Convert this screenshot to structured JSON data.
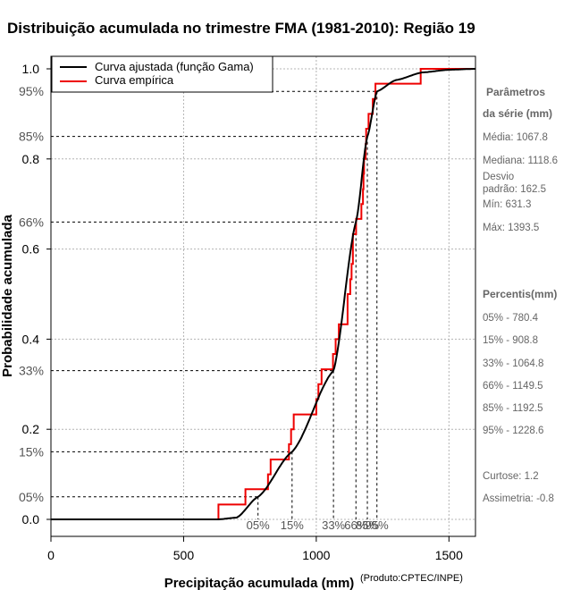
{
  "chart_data": {
    "type": "line",
    "title": "Distribuição acumulada no trimestre FMA (1981-2010): Região 19",
    "xlabel": "Precipitação acumulada (mm)",
    "ylabel": "Probabilidade acumulada",
    "credit": "(Produto:CPTEC/INPE)",
    "xlim": [
      0,
      1600
    ],
    "ylim": [
      0,
      1
    ],
    "x_ticks": [
      0,
      500,
      1000,
      1500
    ],
    "y_ticks": [
      0.0,
      0.2,
      0.4,
      0.6,
      0.8,
      1.0
    ],
    "y_tick_labels": [
      "0.0",
      "0.2",
      "0.4",
      "0.6",
      "0.8",
      "1.0"
    ],
    "grid": true,
    "legend": {
      "position": "top-left",
      "entries": [
        {
          "label": "Curva ajustada (função Gama)",
          "color": "#000000"
        },
        {
          "label": "Curva empírica",
          "color": "#ee0000"
        }
      ]
    },
    "fitted_curve": {
      "name": "Curva ajustada (função Gama)",
      "color": "#000000",
      "mean": 1067.8,
      "sd": 162.5
    },
    "empirical_curve": {
      "name": "Curva empírica",
      "color": "#ee0000",
      "steps": [
        {
          "x": 0,
          "y": 0.0
        },
        {
          "x": 631.3,
          "y": 0.033
        },
        {
          "x": 733,
          "y": 0.067
        },
        {
          "x": 818,
          "y": 0.1
        },
        {
          "x": 828,
          "y": 0.133
        },
        {
          "x": 897,
          "y": 0.167
        },
        {
          "x": 905,
          "y": 0.2
        },
        {
          "x": 915,
          "y": 0.233
        },
        {
          "x": 1000,
          "y": 0.267
        },
        {
          "x": 1008,
          "y": 0.3
        },
        {
          "x": 1020,
          "y": 0.333
        },
        {
          "x": 1063,
          "y": 0.367
        },
        {
          "x": 1073,
          "y": 0.4
        },
        {
          "x": 1085,
          "y": 0.433
        },
        {
          "x": 1118,
          "y": 0.5
        },
        {
          "x": 1128,
          "y": 0.533
        },
        {
          "x": 1133,
          "y": 0.567
        },
        {
          "x": 1138,
          "y": 0.633
        },
        {
          "x": 1150,
          "y": 0.667
        },
        {
          "x": 1170,
          "y": 0.7
        },
        {
          "x": 1176,
          "y": 0.733
        },
        {
          "x": 1178,
          "y": 0.767
        },
        {
          "x": 1180,
          "y": 0.8
        },
        {
          "x": 1186,
          "y": 0.833
        },
        {
          "x": 1188,
          "y": 0.867
        },
        {
          "x": 1197,
          "y": 0.9
        },
        {
          "x": 1213,
          "y": 0.933
        },
        {
          "x": 1223,
          "y": 0.967
        },
        {
          "x": 1393.5,
          "y": 1.0
        },
        {
          "x": 1600,
          "y": 1.0
        }
      ]
    },
    "percentile_marks": [
      {
        "label": "05%",
        "y_label": "05%",
        "p": 0.05,
        "x": 780.4
      },
      {
        "label": "15%",
        "y_label": "15%",
        "p": 0.15,
        "x": 908.8
      },
      {
        "label": "33%",
        "y_label": "33%",
        "p": 0.33,
        "x": 1064.8
      },
      {
        "label": "66%",
        "y_label": "66%",
        "p": 0.66,
        "x": 1149.5
      },
      {
        "label": "85%",
        "y_label": "85%",
        "p": 0.85,
        "x": 1192.5
      },
      {
        "label": "95%",
        "y_label": "95%",
        "p": 0.95,
        "x": 1228.6
      }
    ]
  },
  "sidebar": {
    "params_heading_1": "Parâmetros",
    "params_heading_2": "da série (mm)",
    "media": "Média: 1067.8",
    "mediana": "Mediana: 1118.6",
    "desvio_1": "Desvio",
    "desvio_2": "padrão: 162.5",
    "min": "Mín: 631.3",
    "max": "Máx: 1393.5",
    "percentis_heading": "Percentis(mm)",
    "percentis": [
      "05% - 780.4",
      "15% - 908.8",
      "33% - 1064.8",
      "66% - 1149.5",
      "85% - 1192.5",
      "95% - 1228.6"
    ],
    "curtose": "Curtose: 1.2",
    "assimetria": "Assimetria: -0.8"
  }
}
